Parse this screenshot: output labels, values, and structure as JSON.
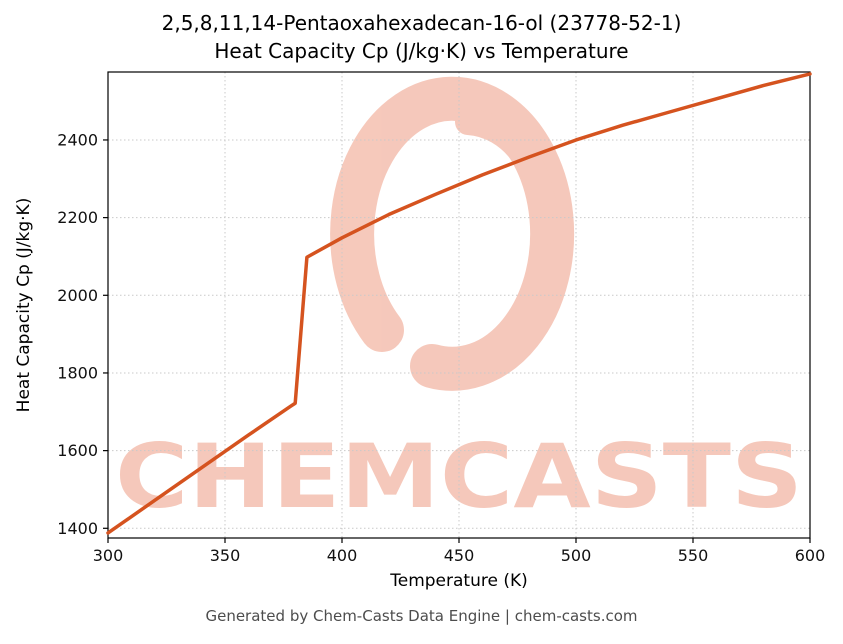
{
  "footer": {
    "text": "Generated by Chem-Casts Data Engine | chem-casts.com"
  },
  "watermark": {
    "text": "CHEMCASTS",
    "color": "#f0a58e"
  },
  "chart_data": {
    "type": "line",
    "title": "2,5,8,11,14-Pentaoxahexadecan-16-ol (23778-52-1)",
    "subtitle": "Heat Capacity Cp (J/kg·K) vs Temperature",
    "xlabel": "Temperature (K)",
    "ylabel": "Heat Capacity Cp (J/kg·K)",
    "xlim": [
      300,
      600
    ],
    "ylim": [
      1375,
      2575
    ],
    "xticks": [
      300,
      350,
      400,
      450,
      500,
      550,
      600
    ],
    "yticks": [
      1400,
      1600,
      1800,
      2000,
      2200,
      2400
    ],
    "grid": true,
    "grid_style": "dotted",
    "legend": "none",
    "line_color": "#d5531f",
    "series": [
      {
        "name": "Heat Capacity Cp",
        "x": [
          300,
          320,
          340,
          360,
          378,
          380,
          385,
          400,
          420,
          440,
          460,
          480,
          500,
          520,
          540,
          560,
          580,
          600
        ],
        "y": [
          1388,
          1472,
          1556,
          1640,
          1714,
          1722,
          2098,
          2148,
          2208,
          2260,
          2310,
          2356,
          2400,
          2438,
          2472,
          2506,
          2540,
          2570
        ]
      }
    ]
  }
}
